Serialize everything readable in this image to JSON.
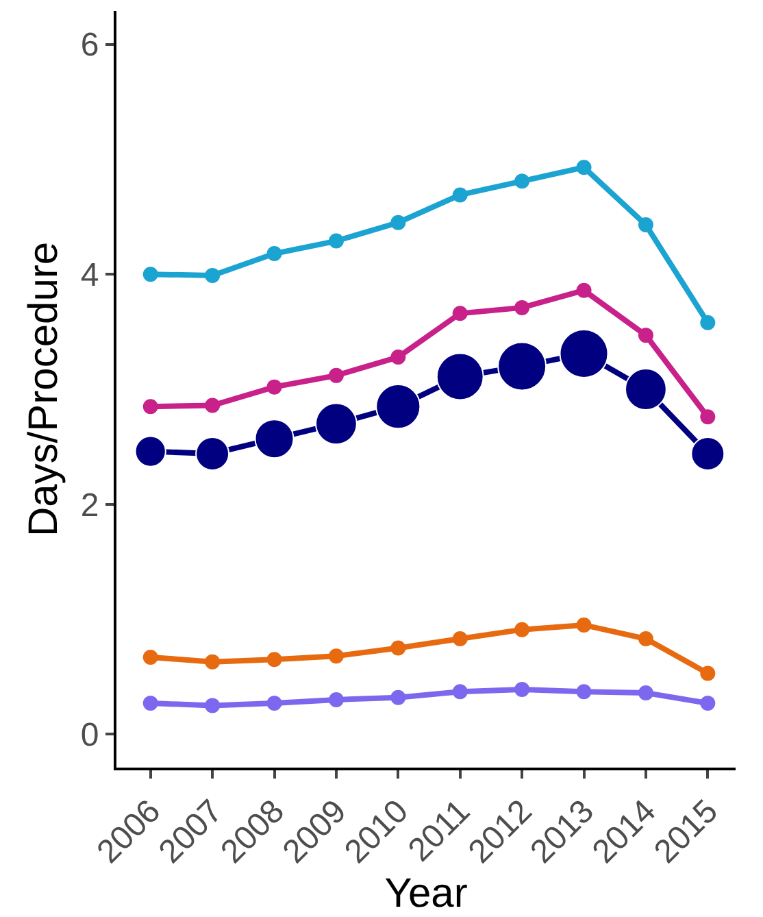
{
  "chart_data": {
    "type": "line",
    "xlabel": "Year",
    "ylabel": "Days/Procedure",
    "categories": [
      "2006",
      "2007",
      "2008",
      "2009",
      "2010",
      "2011",
      "2012",
      "2013",
      "2014",
      "2015"
    ],
    "ylim": [
      -0.29,
      6.29
    ],
    "yticks": [
      0,
      2,
      4,
      6
    ],
    "marker": "circle",
    "line_style": "solid",
    "series": [
      {
        "color": "#1ba3d1",
        "values": [
          4.0,
          3.99,
          4.18,
          4.29,
          4.45,
          4.69,
          4.81,
          4.93,
          4.43,
          3.58
        ]
      },
      {
        "color": "#c8218a",
        "values": [
          2.85,
          2.86,
          3.02,
          3.12,
          3.28,
          3.66,
          3.71,
          3.86,
          3.47,
          2.76
        ]
      },
      {
        "color": "#000080",
        "values": [
          2.46,
          2.44,
          2.57,
          2.7,
          2.85,
          3.11,
          3.2,
          3.31,
          3.0,
          2.44
        ]
      },
      {
        "type": "bubble",
        "color": "#000080",
        "values": [
          2.46,
          2.44,
          2.57,
          2.7,
          2.85,
          3.11,
          3.2,
          3.31,
          3.0,
          2.44
        ],
        "sizes": [
          0.4,
          0.47,
          0.64,
          0.73,
          0.84,
          0.94,
          1,
          1,
          0.73,
          0.47
        ]
      },
      {
        "color": "#e86a10",
        "values": [
          0.67,
          0.63,
          0.65,
          0.68,
          0.75,
          0.83,
          0.91,
          0.95,
          0.83,
          0.53
        ]
      },
      {
        "color": "#7b68ee",
        "values": [
          0.27,
          0.25,
          0.27,
          0.3,
          0.32,
          0.37,
          0.39,
          0.37,
          0.36,
          0.27
        ]
      }
    ]
  }
}
